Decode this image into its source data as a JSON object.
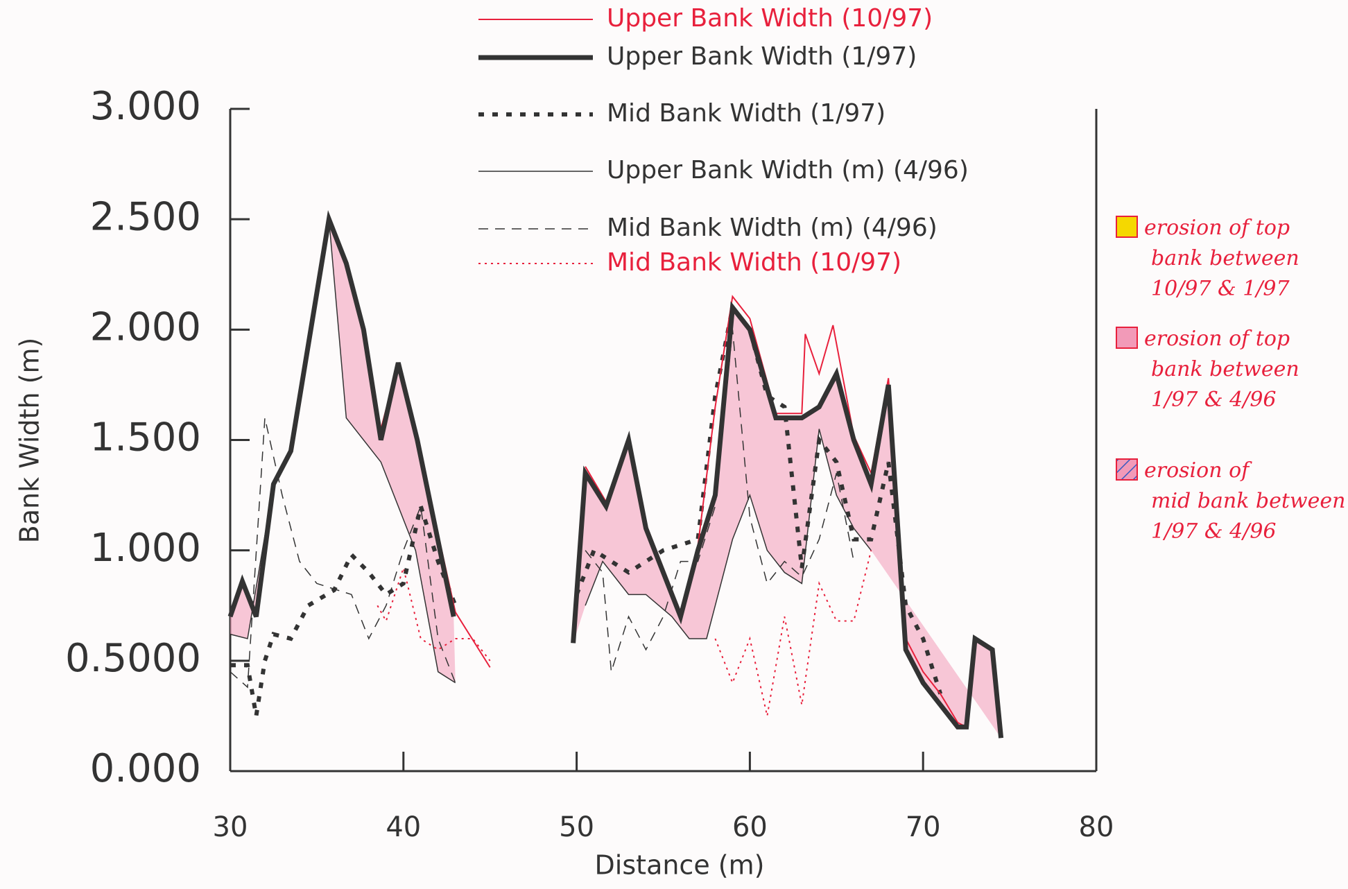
{
  "chart_data": {
    "type": "line",
    "xlabel": "Distance (m)",
    "ylabel": "Bank Width (m)",
    "xlim": [
      30,
      80
    ],
    "xticks": [
      30,
      40,
      50,
      60,
      70,
      80
    ],
    "ylim": [
      0,
      3
    ],
    "yticks": [
      {
        "value": 0,
        "label": "0.000"
      },
      {
        "value": 0.5,
        "label": "0.5000"
      },
      {
        "value": 1,
        "label": "1.000"
      },
      {
        "value": 1.5,
        "label": "1.500"
      },
      {
        "value": 2,
        "label": "2.000"
      },
      {
        "value": 2.5,
        "label": "2.500"
      },
      {
        "value": 3,
        "label": "3.000"
      }
    ],
    "series": [
      {
        "name": "Upper Bank Width (10/97)",
        "color": "#e8203c",
        "style": "solid",
        "width": 2,
        "x": [
          30,
          30.7,
          31.5,
          32.5,
          33.5,
          35.7,
          36.7,
          37.7,
          38.7,
          39.7,
          40.8,
          43,
          45,
          null,
          50.5,
          51.7,
          53,
          54,
          56,
          57,
          58,
          59,
          60,
          61.5,
          63,
          63.2,
          64,
          64.8,
          66,
          67,
          68,
          69,
          70,
          71,
          72,
          72.5
        ],
        "values": [
          0.72,
          0.86,
          0.72,
          1.3,
          1.45,
          2.5,
          2.3,
          2.0,
          1.55,
          1.85,
          1.5,
          0.72,
          0.47,
          null,
          1.38,
          1.22,
          1.52,
          1.12,
          0.72,
          1.02,
          1.65,
          2.15,
          2.05,
          1.62,
          1.62,
          1.98,
          1.8,
          2.02,
          1.52,
          1.35,
          1.78,
          0.6,
          0.45,
          0.35,
          0.22,
          0.2
        ]
      },
      {
        "name": "Upper Bank Width (1/97)",
        "color": "#333333",
        "style": "solid",
        "width": 7,
        "x": [
          30,
          30.7,
          31.5,
          32.5,
          33.5,
          35.7,
          36.7,
          37.7,
          38.7,
          39.7,
          40.8,
          42.9,
          null,
          49.8,
          50.5,
          51.7,
          53,
          54,
          56,
          57,
          58,
          59,
          60,
          61.5,
          63,
          64,
          65,
          66,
          67,
          68,
          69,
          70,
          71,
          72,
          72.5,
          73,
          74,
          74.5
        ],
        "values": [
          0.7,
          0.86,
          0.7,
          1.3,
          1.45,
          2.5,
          2.3,
          2.0,
          1.5,
          1.85,
          1.5,
          0.7,
          null,
          0.58,
          1.35,
          1.2,
          1.5,
          1.1,
          0.7,
          1.0,
          1.25,
          2.1,
          2.0,
          1.6,
          1.6,
          1.65,
          1.8,
          1.5,
          1.3,
          1.75,
          0.55,
          0.4,
          0.3,
          0.2,
          0.2,
          0.6,
          0.55,
          0.15
        ]
      },
      {
        "name": "Mid Bank Width (1/97)",
        "color": "#333333",
        "style": "dotted",
        "width": 6,
        "x": [
          30,
          31,
          31.5,
          32,
          32.5,
          33.5,
          34.5,
          36,
          37,
          38,
          39,
          40,
          41,
          42,
          43,
          null,
          50,
          51,
          52,
          53,
          55,
          57,
          58,
          59,
          60,
          61,
          62,
          63,
          64,
          65,
          66,
          67,
          68,
          69,
          70,
          71
        ],
        "values": [
          0.48,
          0.48,
          0.25,
          0.5,
          0.62,
          0.6,
          0.75,
          0.82,
          0.98,
          0.9,
          0.8,
          0.85,
          1.2,
          0.95,
          0.75,
          null,
          0.8,
          1.0,
          0.95,
          0.9,
          1.0,
          1.05,
          1.7,
          2.1,
          2.0,
          1.7,
          1.65,
          0.92,
          1.5,
          1.4,
          1.05,
          1.05,
          1.4,
          0.75,
          0.6,
          0.35
        ]
      },
      {
        "name": "Upper Bank Width (m) (4/96)",
        "color": "#333333",
        "style": "solid",
        "width": 1.5,
        "x": [
          30,
          31,
          32.5,
          33.5,
          35.7,
          36.7,
          38.7,
          40.7,
          42,
          43,
          null,
          50.5,
          51.5,
          53,
          54,
          55.5,
          56.5,
          57.5,
          59,
          60,
          61,
          62,
          63,
          64,
          65,
          66,
          67
        ],
        "values": [
          0.62,
          0.6,
          1.3,
          1.45,
          2.5,
          1.6,
          1.4,
          1.0,
          0.45,
          0.4,
          null,
          0.75,
          0.95,
          0.8,
          0.8,
          0.7,
          0.6,
          0.6,
          1.05,
          1.25,
          1.0,
          0.9,
          0.85,
          1.55,
          1.25,
          1.1,
          1.0
        ]
      },
      {
        "name": "Mid Bank Width (m) (4/96)",
        "color": "#333333",
        "style": "dashed",
        "width": 1.5,
        "x": [
          30,
          31,
          32,
          33,
          34,
          35,
          37,
          38,
          39,
          40,
          41,
          42,
          43,
          null,
          50.5,
          51.5,
          52,
          53,
          54,
          55,
          56,
          57,
          58,
          59,
          60,
          61,
          62,
          63,
          64,
          65,
          66
        ],
        "values": [
          0.45,
          0.38,
          1.6,
          1.25,
          0.95,
          0.85,
          0.8,
          0.6,
          0.75,
          1.0,
          1.2,
          0.6,
          0.4,
          null,
          1.0,
          0.9,
          0.45,
          0.7,
          0.55,
          0.7,
          0.95,
          0.95,
          1.2,
          2.0,
          1.15,
          0.85,
          0.95,
          0.88,
          1.05,
          1.35,
          0.95
        ]
      },
      {
        "name": "Mid Bank Width (10/97)",
        "color": "#e8203c",
        "style": "dotted",
        "width": 2,
        "x": [
          38.5,
          39,
          40,
          41,
          42,
          43,
          44,
          45,
          null,
          58,
          59,
          60,
          61,
          62,
          63,
          64,
          65,
          66,
          67
        ],
        "values": [
          0.75,
          0.68,
          0.92,
          0.6,
          0.55,
          0.6,
          0.6,
          0.5,
          null,
          0.6,
          0.4,
          0.6,
          0.25,
          0.7,
          0.3,
          0.85,
          0.68,
          0.68,
          1.0
        ]
      }
    ],
    "annotations": [
      {
        "color": "#f5d800",
        "lines": [
          "erosion of top",
          "bank between",
          "10/97 & 1/97"
        ]
      },
      {
        "color": "#f29ab8",
        "lines": [
          "erosion of top",
          "bank between",
          "1/97 & 4/96"
        ]
      },
      {
        "color": "#4a6fc9",
        "lines": [
          "erosion of",
          "mid bank between",
          "1/97 & 4/96"
        ]
      }
    ]
  }
}
